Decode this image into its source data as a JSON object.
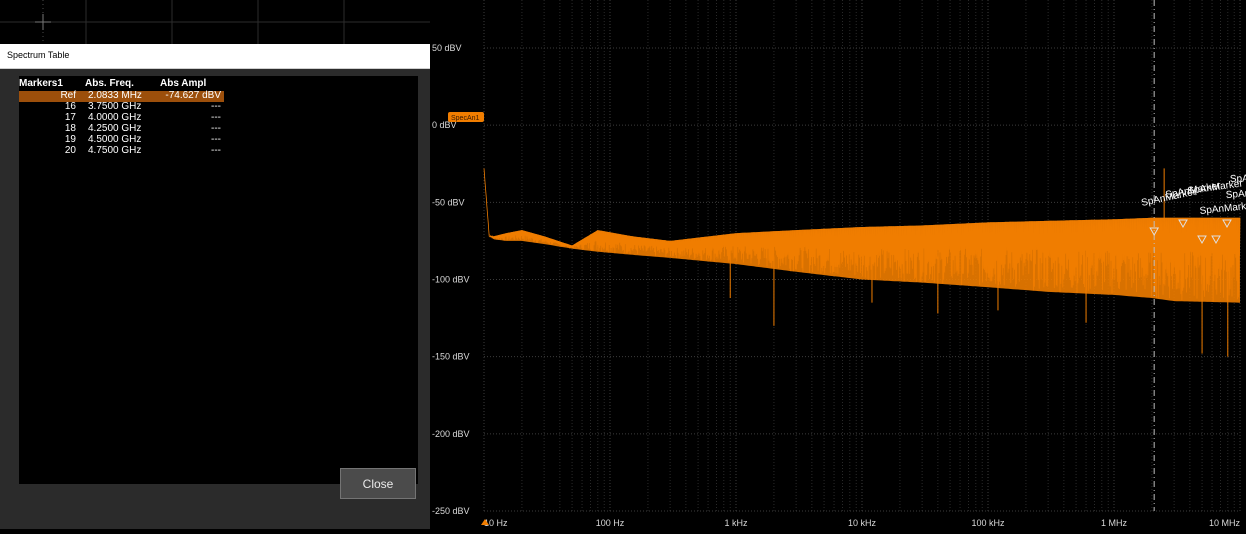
{
  "dialog": {
    "title": "Spectrum Table",
    "close_label": "Close",
    "table": {
      "headers": [
        "Markers1",
        "Abs. Freq.",
        "Abs Ampl"
      ],
      "rows": [
        {
          "marker": "Ref",
          "freq": "2.0833 MHz",
          "ampl": "-74.627 dBV",
          "selected": true
        },
        {
          "marker": "16",
          "freq": "3.7500 GHz",
          "ampl": "---",
          "selected": false
        },
        {
          "marker": "17",
          "freq": "4.0000 GHz",
          "ampl": "---",
          "selected": false
        },
        {
          "marker": "18",
          "freq": "4.2500 GHz",
          "ampl": "---",
          "selected": false
        },
        {
          "marker": "19",
          "freq": "4.5000 GHz",
          "ampl": "---",
          "selected": false
        },
        {
          "marker": "20",
          "freq": "4.7500 GHz",
          "ampl": "---",
          "selected": false
        }
      ]
    }
  },
  "plot": {
    "trace_tag": "SpecAn1",
    "trace_color": "#f07d00",
    "y_labels": [
      "50 dBV",
      "0 dBV",
      "-50 dBV",
      "-100 dBV",
      "-150 dBV",
      "-200 dBV",
      "-250 dBV"
    ],
    "x_labels": [
      "10 Hz",
      "100 Hz",
      "1 kHz",
      "10 kHz",
      "100 kHz",
      "1 MHz",
      "10 MHz"
    ],
    "marker_text": "SpAnMarker"
  },
  "chart_data": {
    "type": "line",
    "x_scale": "log",
    "xlim": [
      10,
      10000000
    ],
    "ylim": [
      -250,
      50
    ],
    "xlabel": "",
    "ylabel": "",
    "title": "",
    "x_ticks": [
      "10 Hz",
      "100 Hz",
      "1 kHz",
      "10 kHz",
      "100 kHz",
      "1 MHz",
      "10 MHz"
    ],
    "y_ticks": [
      "50 dBV",
      "0 dBV",
      "-50 dBV",
      "-100 dBV",
      "-150 dBV",
      "-200 dBV",
      "-250 dBV"
    ],
    "grid": true,
    "series": [
      {
        "color": "#f07d00",
        "envelope_x": [
          10,
          11,
          12,
          15,
          20,
          30,
          50,
          80,
          150,
          300,
          1000,
          3000,
          10000,
          30000,
          100000,
          300000,
          1000000,
          2000000,
          3000000,
          10000000
        ],
        "envelope_upper": [
          -28,
          -72,
          -72,
          -70,
          -68,
          -72,
          -78,
          -68,
          -72,
          -75,
          -70,
          -68,
          -66,
          -65,
          -63,
          -62,
          -61,
          -60,
          -60,
          -60
        ],
        "envelope_lower": [
          -28,
          -72,
          -74,
          -75,
          -75,
          -77,
          -80,
          -82,
          -84,
          -86,
          -90,
          -95,
          -100,
          -102,
          -105,
          -108,
          -110,
          -112,
          -114,
          -115
        ]
      }
    ]
  }
}
